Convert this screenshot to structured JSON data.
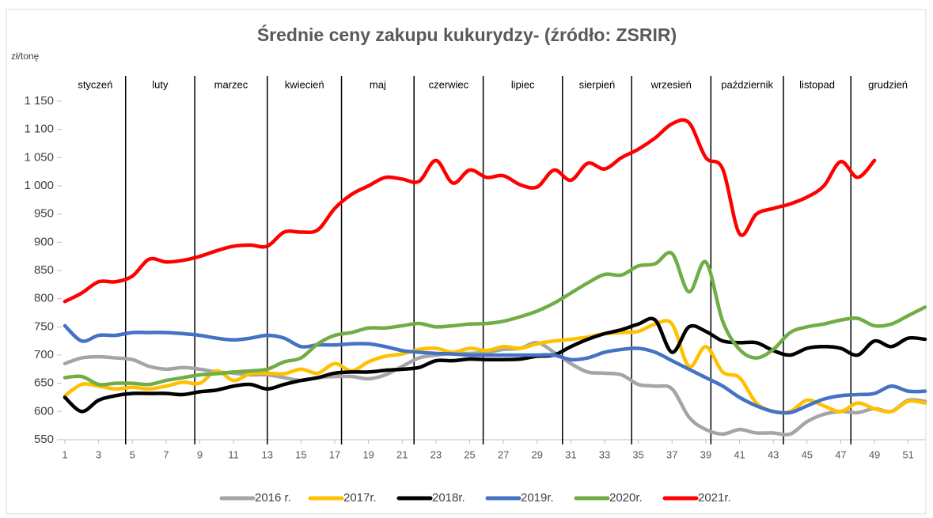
{
  "chart_data": {
    "type": "line",
    "title": "Średnie ceny zakupu kukurydzy- (źródło: ZSRIR)",
    "y_label": "zł/tonę",
    "months": [
      "styczeń",
      "luty",
      "marzec",
      "kwiecień",
      "maj",
      "czerwiec",
      "lipiec",
      "sierpień",
      "wrzesień",
      "październik",
      "listopad",
      "grudzień"
    ],
    "month_boundaries": [
      4.6,
      8.7,
      13,
      17.4,
      21.7,
      25.8,
      30.5,
      34.6,
      39.3,
      43.6,
      47.6
    ],
    "x": [
      1,
      2,
      3,
      4,
      5,
      6,
      7,
      8,
      9,
      10,
      11,
      12,
      13,
      14,
      15,
      16,
      17,
      18,
      19,
      20,
      21,
      22,
      23,
      24,
      25,
      26,
      27,
      28,
      29,
      30,
      31,
      32,
      33,
      34,
      35,
      36,
      37,
      38,
      39,
      40,
      41,
      42,
      43,
      44,
      45,
      46,
      47,
      48,
      49,
      50,
      51,
      52
    ],
    "xlim": [
      1,
      52
    ],
    "xticks": [
      1,
      3,
      5,
      7,
      9,
      11,
      13,
      15,
      17,
      19,
      21,
      23,
      25,
      27,
      29,
      31,
      33,
      35,
      37,
      39,
      41,
      43,
      45,
      47,
      49,
      51
    ],
    "ylim": [
      550,
      1150
    ],
    "yticks": [
      550,
      600,
      650,
      700,
      750,
      800,
      850,
      900,
      950,
      {
        "value": 1000,
        "label": "1 000"
      },
      {
        "value": 1050,
        "label": "1 050"
      },
      {
        "value": 1100,
        "label": "1 100"
      },
      {
        "value": 1150,
        "label": "1 150"
      }
    ],
    "series": [
      {
        "name": "2016 r.",
        "color": "#a5a5a5",
        "values": [
          685,
          695,
          697,
          695,
          692,
          680,
          675,
          678,
          675,
          670,
          668,
          665,
          665,
          660,
          655,
          660,
          662,
          662,
          658,
          665,
          680,
          695,
          700,
          703,
          703,
          705,
          710,
          712,
          722,
          705,
          685,
          670,
          668,
          665,
          648,
          645,
          640,
          590,
          568,
          560,
          568,
          562,
          562,
          560,
          582,
          595,
          600,
          598,
          605,
          600,
          620,
          618
        ]
      },
      {
        "name": "2017r.",
        "color": "#ffc000",
        "values": [
          628,
          648,
          645,
          640,
          643,
          640,
          645,
          652,
          650,
          672,
          655,
          667,
          668,
          667,
          675,
          668,
          685,
          672,
          688,
          698,
          702,
          710,
          712,
          705,
          712,
          708,
          715,
          712,
          720,
          725,
          728,
          732,
          738,
          740,
          742,
          755,
          755,
          680,
          715,
          670,
          660,
          615,
          600,
          600,
          620,
          610,
          600,
          615,
          605,
          600,
          618,
          615
        ]
      },
      {
        "name": "2018r.",
        "color": "#000000",
        "values": [
          625,
          600,
          620,
          628,
          632,
          632,
          632,
          630,
          635,
          638,
          645,
          648,
          640,
          648,
          655,
          660,
          668,
          670,
          670,
          673,
          675,
          678,
          690,
          690,
          693,
          692,
          692,
          693,
          698,
          700,
          715,
          728,
          738,
          745,
          755,
          762,
          705,
          750,
          742,
          725,
          722,
          722,
          708,
          700,
          712,
          715,
          712,
          700,
          725,
          715,
          730,
          728
        ]
      },
      {
        "name": "2019r.",
        "color": "#4472c4",
        "values": [
          752,
          725,
          735,
          735,
          740,
          740,
          740,
          738,
          735,
          730,
          727,
          730,
          735,
          730,
          715,
          718,
          718,
          720,
          720,
          715,
          708,
          705,
          703,
          702,
          700,
          700,
          700,
          700,
          700,
          700,
          692,
          695,
          705,
          710,
          712,
          705,
          690,
          675,
          660,
          645,
          625,
          610,
          600,
          598,
          610,
          622,
          628,
          630,
          632,
          645,
          636,
          636
        ]
      },
      {
        "name": "2020r.",
        "color": "#70ad47",
        "values": [
          660,
          662,
          648,
          650,
          650,
          648,
          655,
          660,
          665,
          667,
          670,
          672,
          675,
          688,
          695,
          720,
          735,
          740,
          748,
          748,
          752,
          756,
          750,
          752,
          755,
          756,
          760,
          768,
          778,
          792,
          810,
          828,
          843,
          842,
          858,
          862,
          880,
          812,
          865,
          760,
          710,
          695,
          710,
          740,
          750,
          755,
          762,
          765,
          752,
          755,
          770,
          785
        ]
      },
      {
        "name": "2021r.",
        "color": "#ff0000",
        "values": [
          795,
          810,
          830,
          830,
          840,
          870,
          865,
          868,
          875,
          885,
          893,
          895,
          893,
          918,
          918,
          922,
          960,
          985,
          1000,
          1015,
          1012,
          1008,
          1045,
          1005,
          1028,
          1015,
          1018,
          1002,
          998,
          1028,
          1010,
          1040,
          1030,
          1050,
          1065,
          1085,
          1110,
          1112,
          1050,
          1030,
          915,
          950,
          960,
          968,
          980,
          1000,
          1043,
          1015,
          1045,
          null,
          null,
          null
        ]
      }
    ]
  }
}
